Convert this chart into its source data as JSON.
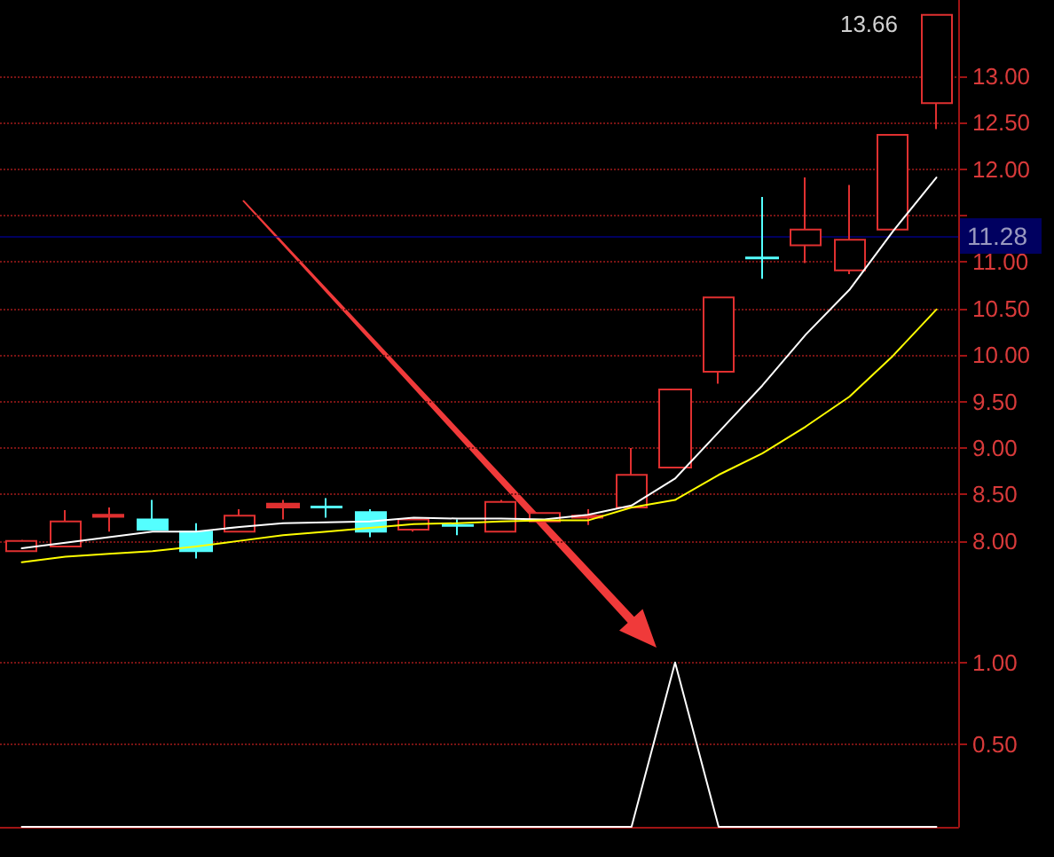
{
  "chart_data": [
    {
      "type": "candlestick",
      "categories": [
        null,
        null,
        null,
        null,
        null,
        null,
        null,
        null,
        null,
        null,
        null,
        null,
        null,
        null,
        null,
        null,
        null,
        null,
        null,
        null,
        null,
        null
      ],
      "ohlc": [
        [
          7.89,
          8.01,
          7.88,
          8.0
        ],
        [
          7.94,
          8.33,
          7.94,
          8.21
        ],
        [
          8.26,
          8.36,
          8.1,
          8.28
        ],
        [
          8.23,
          8.44,
          8.12,
          8.12
        ],
        [
          8.1,
          8.19,
          7.81,
          7.89
        ],
        [
          8.1,
          8.34,
          8.1,
          8.27
        ],
        [
          8.36,
          8.44,
          8.23,
          8.4
        ],
        [
          8.37,
          8.46,
          8.25,
          8.36
        ],
        [
          8.31,
          8.34,
          8.04,
          8.1
        ],
        [
          8.12,
          8.24,
          8.1,
          8.23
        ],
        [
          8.17,
          8.23,
          8.06,
          8.16
        ],
        [
          8.1,
          8.44,
          8.1,
          8.42
        ],
        [
          8.21,
          8.31,
          8.21,
          8.3
        ],
        [
          8.25,
          8.34,
          8.17,
          8.27
        ],
        [
          8.36,
          9.0,
          8.36,
          8.71
        ],
        [
          8.79,
          9.63,
          8.79,
          9.63
        ],
        [
          9.82,
          10.62,
          9.69,
          10.62
        ],
        [
          11.05,
          11.7,
          10.82,
          11.04
        ],
        [
          11.18,
          11.91,
          10.99,
          11.35
        ],
        [
          10.91,
          11.83,
          10.87,
          11.24
        ],
        [
          11.35,
          12.37,
          11.35,
          12.37
        ],
        [
          12.71,
          13.66,
          12.43,
          13.66
        ]
      ],
      "colors": [
        "#e03030",
        "#e03030",
        "#e03030",
        "#54ffff",
        "#54ffff",
        "#e03030",
        "#e03030",
        "#54ffff",
        "#54ffff",
        "#e03030",
        "#54ffff",
        "#e03030",
        "#e03030",
        "#e03030",
        "#e03030",
        "#e03030",
        "#e03030",
        "#54ffff",
        "#e03030",
        "#e03030",
        "#e03030",
        "#e03030"
      ],
      "series": [
        {
          "type": "line",
          "color": "#ffffff",
          "values": [
            7.92,
            7.98,
            8.04,
            8.1,
            8.1,
            8.15,
            8.19,
            8.2,
            8.21,
            8.25,
            8.24,
            8.24,
            8.23,
            8.28,
            8.38,
            8.67,
            9.17,
            9.67,
            10.22,
            10.7,
            11.33,
            11.91
          ]
        },
        {
          "type": "line",
          "color": "#ffff00",
          "values": [
            7.77,
            7.83,
            7.86,
            7.89,
            7.94,
            8.0,
            8.06,
            8.1,
            8.14,
            8.18,
            8.19,
            8.21,
            8.22,
            8.22,
            8.36,
            8.44,
            8.71,
            8.94,
            9.23,
            9.55,
            9.99,
            10.49
          ]
        }
      ],
      "ylim": [
        7.08,
        13.82
      ],
      "yticks": [
        {
          "value": 8,
          "label": "8.00"
        },
        {
          "value": 8.5,
          "label": "8.50"
        },
        {
          "value": 9,
          "label": "9.00"
        },
        {
          "value": 9.5,
          "label": "9.50"
        },
        {
          "value": 10,
          "label": "10.00"
        },
        {
          "value": 10.5,
          "label": "10.50"
        },
        {
          "value": 11,
          "label": "11.00"
        },
        {
          "value": 11.5,
          "label": null
        },
        {
          "value": 12,
          "label": "12.00"
        },
        {
          "value": 12.5,
          "label": "12.50"
        },
        {
          "value": 13,
          "label": "13.00"
        }
      ],
      "ref_lines": [
        {
          "axis": "y",
          "value": 11.28,
          "label": "11.28",
          "color": "#0000a0"
        }
      ],
      "annotations": [
        "13.66"
      ],
      "grid": "y",
      "marker": "none",
      "line_style": "solid",
      "tick_labels": "y"
    },
    {
      "type": "line",
      "categories": [
        null,
        null,
        null,
        null,
        null,
        null,
        null,
        null,
        null,
        null,
        null,
        null,
        null,
        null,
        null,
        null,
        null,
        null,
        null,
        null,
        null,
        null
      ],
      "color": "#ffffff",
      "values": [
        0,
        0,
        0,
        0,
        0,
        0,
        0,
        0,
        0,
        0,
        0,
        0,
        0,
        0,
        0,
        1,
        0,
        0,
        0,
        0,
        0,
        0
      ],
      "ylim": [
        0,
        1.22
      ],
      "yticks": [
        {
          "value": 0.5,
          "label": "0.50"
        },
        {
          "value": 1,
          "label": "1.00"
        }
      ],
      "grid": "y",
      "marker": "none",
      "line_style": "solid",
      "tick_labels": "y"
    }
  ]
}
